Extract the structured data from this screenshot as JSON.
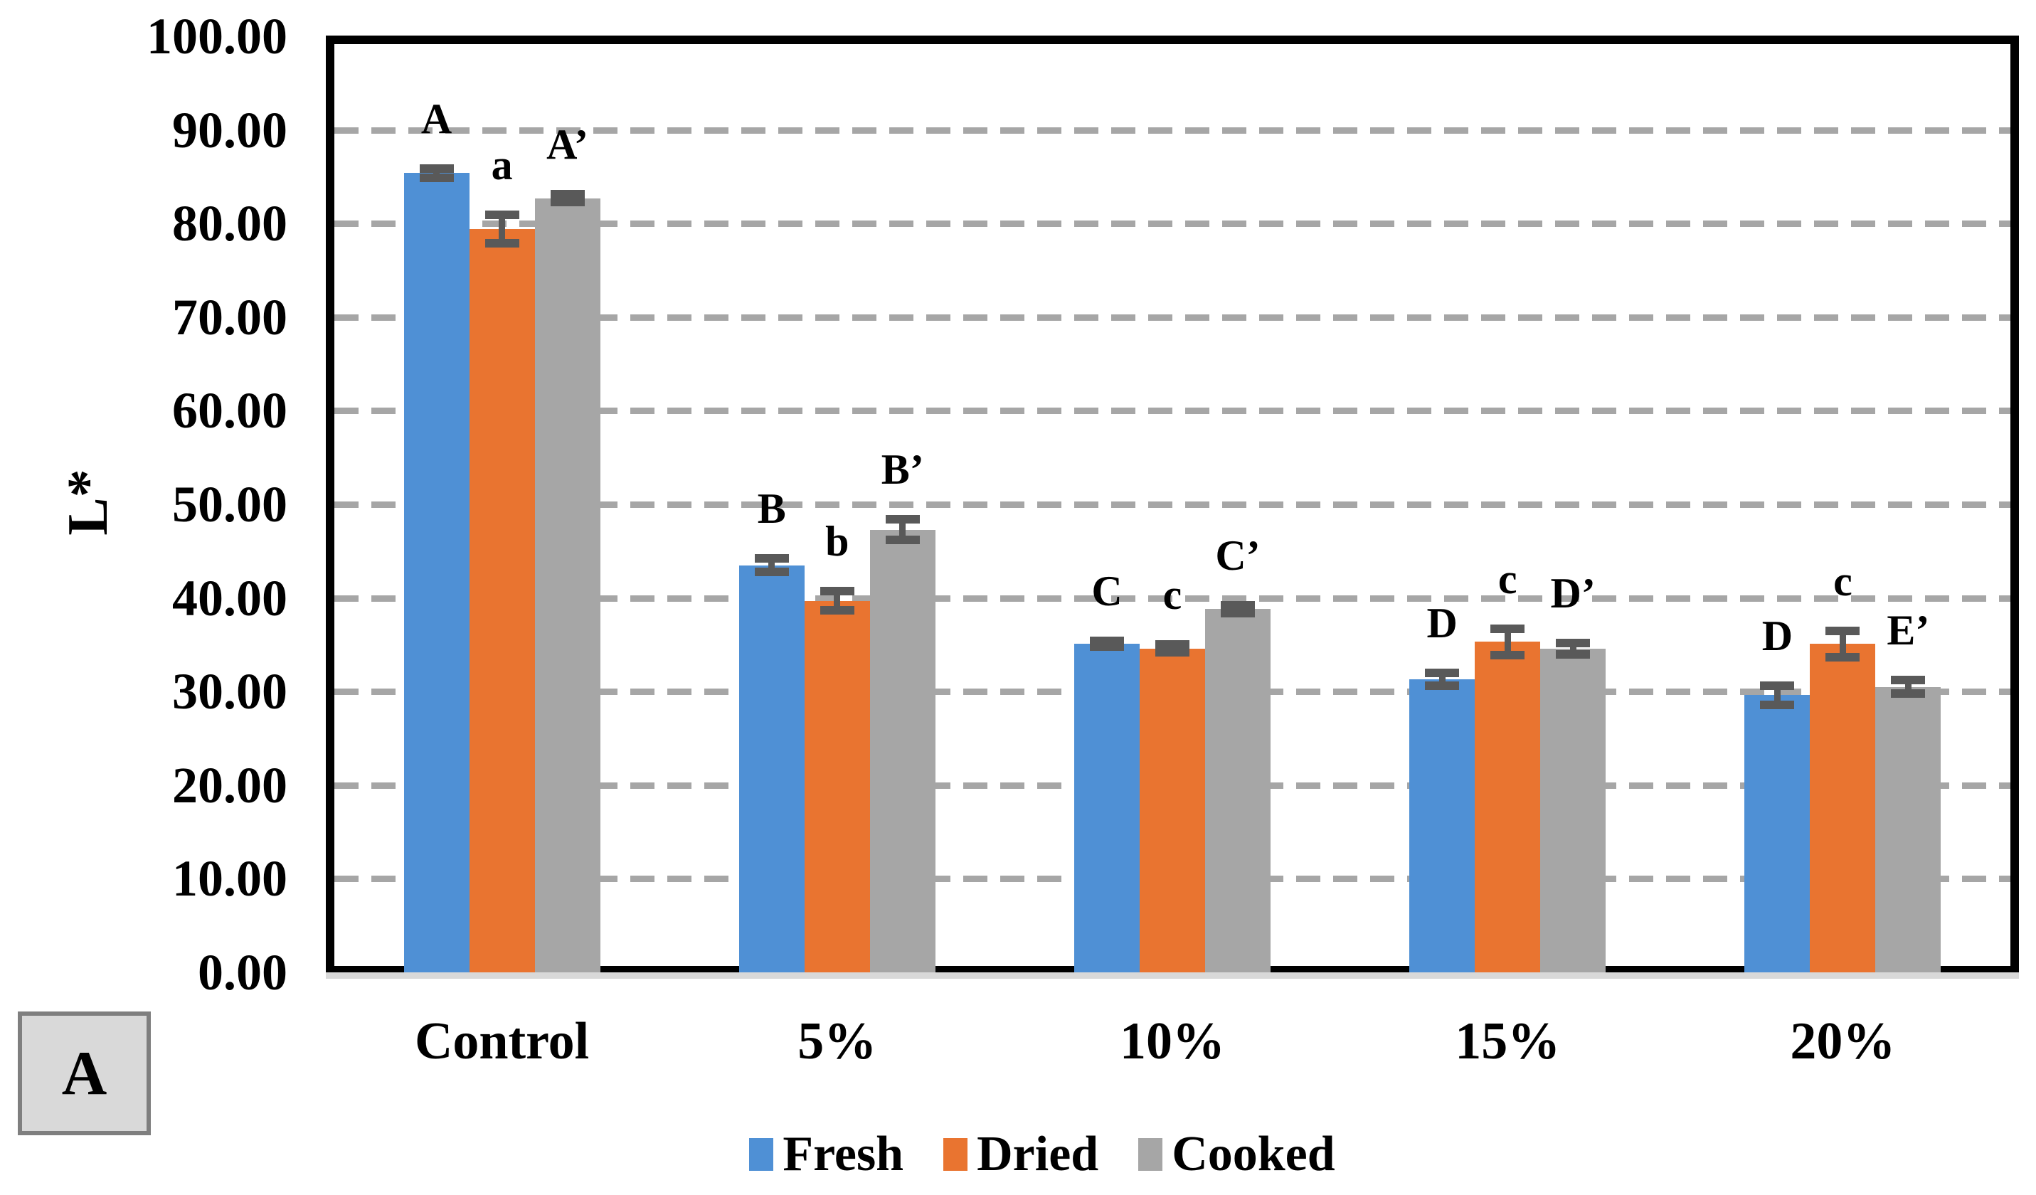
{
  "figure": {
    "panel_label": "A",
    "y_axis": {
      "title": "L*",
      "tick_labels": [
        "0.00",
        "10.00",
        "20.00",
        "30.00",
        "40.00",
        "50.00",
        "60.00",
        "70.00",
        "80.00",
        "90.00",
        "100.00"
      ]
    }
  },
  "chart_data": {
    "type": "bar",
    "title": "",
    "xlabel": "",
    "ylabel": "L*",
    "ylim": [
      0,
      100
    ],
    "ytick_step": 10,
    "grid": "horizontal dashed gray lines every 10 units",
    "legend_position": "bottom",
    "categories": [
      "Control",
      "5%",
      "10%",
      "15%",
      "20%"
    ],
    "series": [
      {
        "name": "Fresh",
        "color": "#4F90D5",
        "values": [
          85.4,
          43.5,
          35.1,
          31.3,
          29.6
        ],
        "errors": [
          0.5,
          0.7,
          0.3,
          0.7,
          1.0
        ],
        "letters": [
          "A",
          "B",
          "C",
          "D",
          "D"
        ]
      },
      {
        "name": "Dried",
        "color": "#E97430",
        "values": [
          79.4,
          39.7,
          34.6,
          35.3,
          35.1
        ],
        "errors": [
          1.5,
          1.0,
          0.4,
          1.4,
          1.4
        ],
        "letters": [
          "a",
          "b",
          "c",
          "c",
          "c"
        ]
      },
      {
        "name": "Cooked",
        "color": "#A6A6A6",
        "values": [
          82.7,
          47.3,
          38.8,
          34.6,
          30.5
        ],
        "errors": [
          0.4,
          1.1,
          0.4,
          0.6,
          0.7
        ],
        "letters": [
          "A’",
          "B’",
          "C’",
          "D’",
          "E’"
        ]
      }
    ],
    "error_bar_color": "#595959",
    "gridline_color": "#A6A6A6",
    "panel_label": "A"
  }
}
